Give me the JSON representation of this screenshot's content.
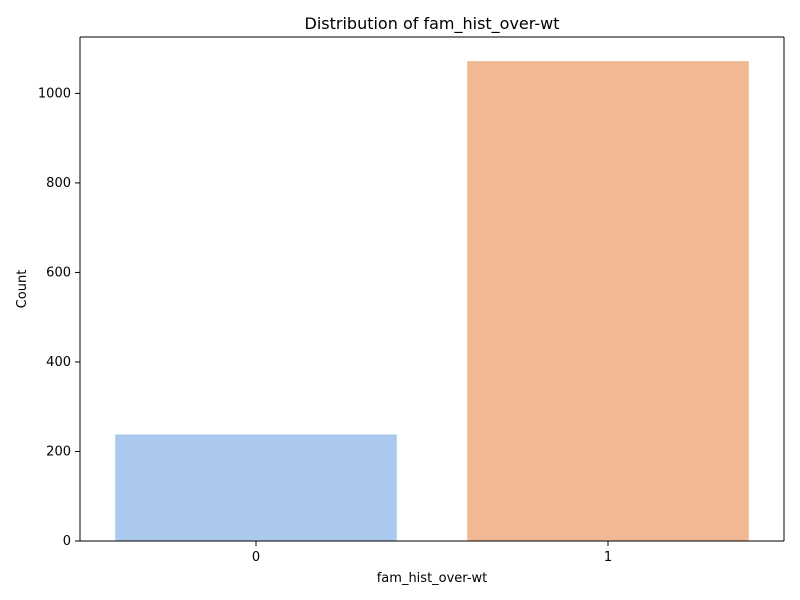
{
  "chart_data": {
    "type": "bar",
    "title": "Distribution of fam_hist_over-wt",
    "xlabel": "fam_hist_over-wt",
    "ylabel": "Count",
    "categories": [
      "0",
      "1"
    ],
    "values": [
      238,
      1072
    ],
    "ylim": [
      0,
      1126
    ],
    "yticks": [
      0,
      200,
      400,
      600,
      800,
      1000
    ],
    "colors": [
      "#abc9ed",
      "#f0b893"
    ],
    "grid": false,
    "legend": "none"
  }
}
